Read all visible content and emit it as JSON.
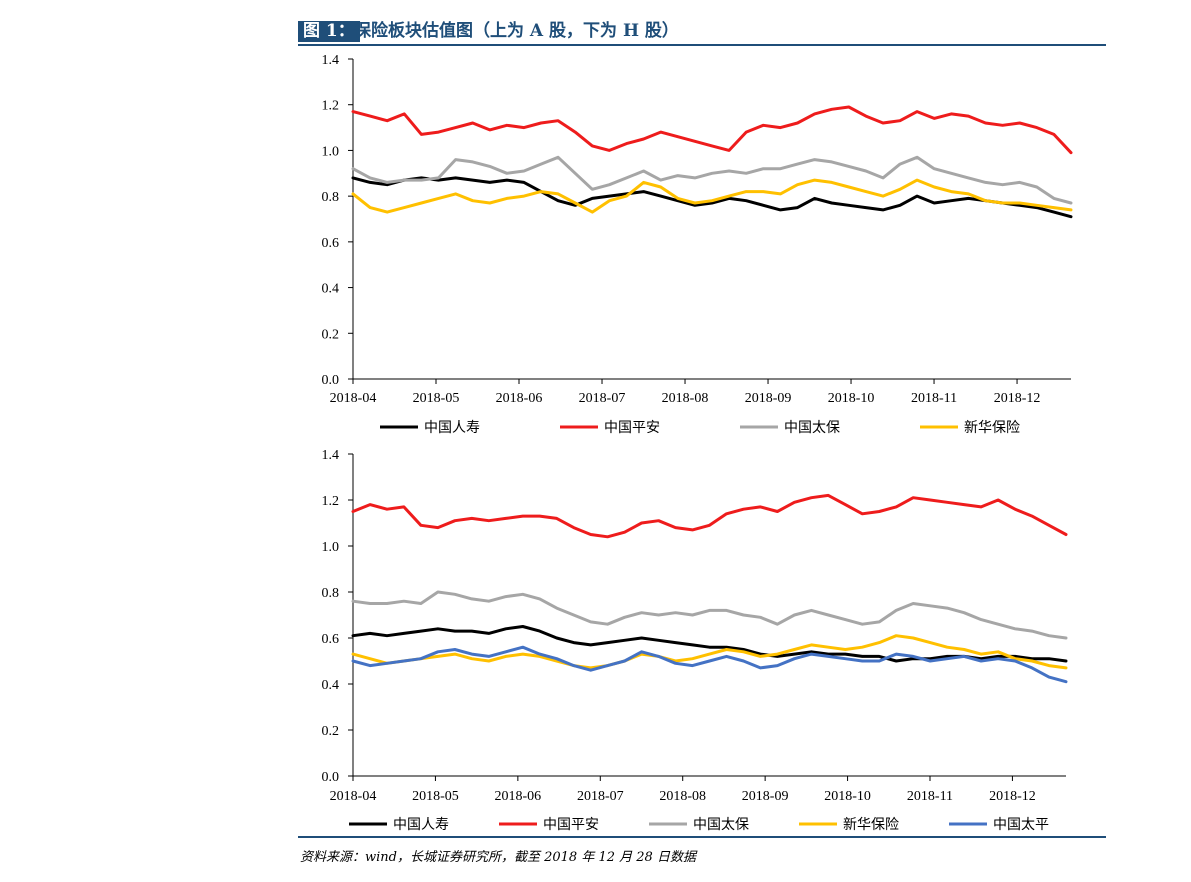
{
  "header": {
    "badge": "图 1：",
    "title": "保险板块估值图（上为 A 股，下为 H 股）"
  },
  "footer": {
    "source": "资料来源：wind，长城证券研究所，截至 2018 年 12 月 28 日数据"
  },
  "colors": {
    "title": "#1f4e79",
    "black": "#000000",
    "red": "#ee1c1c",
    "gray": "#a6a6a6",
    "yellow": "#ffc000",
    "blue": "#4472c4"
  },
  "chart_data": [
    {
      "type": "line",
      "ylim": [
        0,
        1.4
      ],
      "yticks": [
        "0.0",
        "0.2",
        "0.4",
        "0.6",
        "0.8",
        "1.0",
        "1.2",
        "1.4"
      ],
      "x_labels": [
        "2018-04",
        "2018-05",
        "2018-06",
        "2018-07",
        "2018-08",
        "2018-09",
        "2018-10",
        "2018-11",
        "2018-12"
      ],
      "legend": "bottom",
      "series": [
        {
          "name": "中国人寿",
          "color": "#000000",
          "values": [
            0.88,
            0.86,
            0.85,
            0.87,
            0.88,
            0.87,
            0.88,
            0.87,
            0.86,
            0.87,
            0.86,
            0.82,
            0.78,
            0.76,
            0.79,
            0.8,
            0.81,
            0.82,
            0.8,
            0.78,
            0.76,
            0.77,
            0.79,
            0.78,
            0.76,
            0.74,
            0.75,
            0.79,
            0.77,
            0.76,
            0.75,
            0.74,
            0.76,
            0.8,
            0.77,
            0.78,
            0.79,
            0.78,
            0.77,
            0.76,
            0.75,
            0.73,
            0.71
          ]
        },
        {
          "name": "中国平安",
          "color": "#ee1c1c",
          "values": [
            1.17,
            1.15,
            1.13,
            1.16,
            1.07,
            1.08,
            1.1,
            1.12,
            1.09,
            1.11,
            1.1,
            1.12,
            1.13,
            1.08,
            1.02,
            1.0,
            1.03,
            1.05,
            1.08,
            1.06,
            1.04,
            1.02,
            1.0,
            1.08,
            1.11,
            1.1,
            1.12,
            1.16,
            1.18,
            1.19,
            1.15,
            1.12,
            1.13,
            1.17,
            1.14,
            1.16,
            1.15,
            1.12,
            1.11,
            1.12,
            1.1,
            1.07,
            0.99
          ]
        },
        {
          "name": "中国太保",
          "color": "#a6a6a6",
          "values": [
            0.92,
            0.88,
            0.86,
            0.87,
            0.87,
            0.88,
            0.96,
            0.95,
            0.93,
            0.9,
            0.91,
            0.94,
            0.97,
            0.9,
            0.83,
            0.85,
            0.88,
            0.91,
            0.87,
            0.89,
            0.88,
            0.9,
            0.91,
            0.9,
            0.92,
            0.92,
            0.94,
            0.96,
            0.95,
            0.93,
            0.91,
            0.88,
            0.94,
            0.97,
            0.92,
            0.9,
            0.88,
            0.86,
            0.85,
            0.86,
            0.84,
            0.79,
            0.77
          ]
        },
        {
          "name": "新华保险",
          "color": "#ffc000",
          "values": [
            0.81,
            0.75,
            0.73,
            0.75,
            0.77,
            0.79,
            0.81,
            0.78,
            0.77,
            0.79,
            0.8,
            0.82,
            0.81,
            0.77,
            0.73,
            0.78,
            0.8,
            0.86,
            0.84,
            0.79,
            0.77,
            0.78,
            0.8,
            0.82,
            0.82,
            0.81,
            0.85,
            0.87,
            0.86,
            0.84,
            0.82,
            0.8,
            0.83,
            0.87,
            0.84,
            0.82,
            0.81,
            0.78,
            0.77,
            0.77,
            0.76,
            0.75,
            0.74
          ]
        }
      ]
    },
    {
      "type": "line",
      "ylim": [
        0,
        1.4
      ],
      "yticks": [
        "0.0",
        "0.2",
        "0.4",
        "0.6",
        "0.8",
        "1.0",
        "1.2",
        "1.4"
      ],
      "x_labels": [
        "2018-04",
        "2018-05",
        "2018-06",
        "2018-07",
        "2018-08",
        "2018-09",
        "2018-10",
        "2018-11",
        "2018-12"
      ],
      "legend": "bottom",
      "series": [
        {
          "name": "中国人寿",
          "color": "#000000",
          "values": [
            0.61,
            0.62,
            0.61,
            0.62,
            0.63,
            0.64,
            0.63,
            0.63,
            0.62,
            0.64,
            0.65,
            0.63,
            0.6,
            0.58,
            0.57,
            0.58,
            0.59,
            0.6,
            0.59,
            0.58,
            0.57,
            0.56,
            0.56,
            0.55,
            0.53,
            0.52,
            0.53,
            0.54,
            0.53,
            0.53,
            0.52,
            0.52,
            0.5,
            0.51,
            0.51,
            0.52,
            0.52,
            0.51,
            0.52,
            0.52,
            0.51,
            0.51,
            0.5
          ]
        },
        {
          "name": "中国平安",
          "color": "#ee1c1c",
          "values": [
            1.15,
            1.18,
            1.16,
            1.17,
            1.09,
            1.08,
            1.11,
            1.12,
            1.11,
            1.12,
            1.13,
            1.13,
            1.12,
            1.08,
            1.05,
            1.04,
            1.06,
            1.1,
            1.11,
            1.08,
            1.07,
            1.09,
            1.14,
            1.16,
            1.17,
            1.15,
            1.19,
            1.21,
            1.22,
            1.18,
            1.14,
            1.15,
            1.17,
            1.21,
            1.2,
            1.19,
            1.18,
            1.17,
            1.2,
            1.16,
            1.13,
            1.09,
            1.05
          ]
        },
        {
          "name": "中国太保",
          "color": "#a6a6a6",
          "values": [
            0.76,
            0.75,
            0.75,
            0.76,
            0.75,
            0.8,
            0.79,
            0.77,
            0.76,
            0.78,
            0.79,
            0.77,
            0.73,
            0.7,
            0.67,
            0.66,
            0.69,
            0.71,
            0.7,
            0.71,
            0.7,
            0.72,
            0.72,
            0.7,
            0.69,
            0.66,
            0.7,
            0.72,
            0.7,
            0.68,
            0.66,
            0.67,
            0.72,
            0.75,
            0.74,
            0.73,
            0.71,
            0.68,
            0.66,
            0.64,
            0.63,
            0.61,
            0.6
          ]
        },
        {
          "name": "新华保险",
          "color": "#ffc000",
          "values": [
            0.53,
            0.51,
            0.49,
            0.5,
            0.51,
            0.52,
            0.53,
            0.51,
            0.5,
            0.52,
            0.53,
            0.52,
            0.5,
            0.48,
            0.47,
            0.48,
            0.5,
            0.53,
            0.52,
            0.5,
            0.51,
            0.53,
            0.55,
            0.54,
            0.52,
            0.53,
            0.55,
            0.57,
            0.56,
            0.55,
            0.56,
            0.58,
            0.61,
            0.6,
            0.58,
            0.56,
            0.55,
            0.53,
            0.54,
            0.51,
            0.5,
            0.48,
            0.47
          ]
        },
        {
          "name": "中国太平",
          "color": "#4472c4",
          "values": [
            0.5,
            0.48,
            0.49,
            0.5,
            0.51,
            0.54,
            0.55,
            0.53,
            0.52,
            0.54,
            0.56,
            0.53,
            0.51,
            0.48,
            0.46,
            0.48,
            0.5,
            0.54,
            0.52,
            0.49,
            0.48,
            0.5,
            0.52,
            0.5,
            0.47,
            0.48,
            0.51,
            0.53,
            0.52,
            0.51,
            0.5,
            0.5,
            0.53,
            0.52,
            0.5,
            0.51,
            0.52,
            0.5,
            0.51,
            0.5,
            0.47,
            0.43,
            0.41
          ]
        }
      ]
    }
  ]
}
